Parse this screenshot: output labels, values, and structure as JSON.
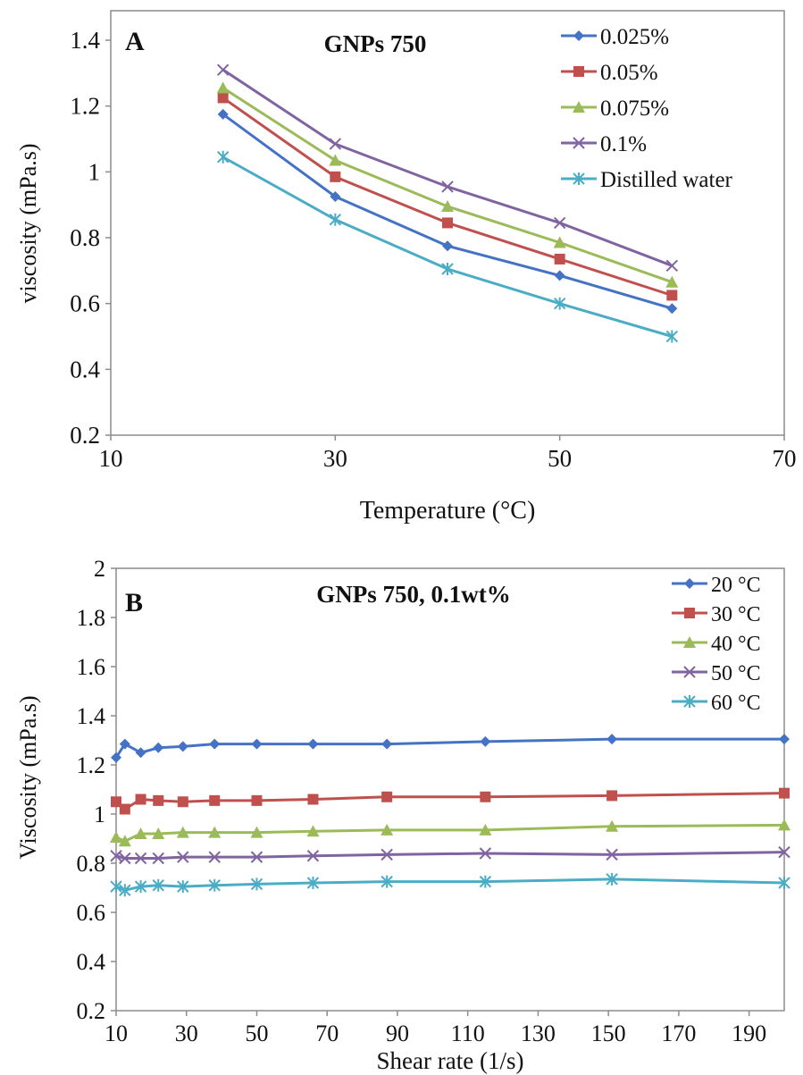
{
  "chart_data": [
    {
      "type": "line",
      "panel_label": "A",
      "title": "GNPs 750",
      "xlabel": "Temperature (°C)",
      "ylabel": "viscosity (mPa.s)",
      "xlim": [
        10,
        70
      ],
      "ylim": [
        0.2,
        1.4
      ],
      "xticks": [
        "10",
        "30",
        "50",
        "70"
      ],
      "yticks": [
        "0.2",
        "0.4",
        "0.6",
        "0.8",
        "1",
        "1.2",
        "1.4"
      ],
      "grid": false,
      "legend_position": "top-right",
      "x": [
        20,
        30,
        40,
        50,
        60
      ],
      "series": [
        {
          "name": "0.025%",
          "color": "#4472c4",
          "marker": "diamond",
          "values": [
            1.175,
            0.925,
            0.775,
            0.685,
            0.585
          ]
        },
        {
          "name": "0.05%",
          "color": "#c0504d",
          "marker": "square",
          "values": [
            1.225,
            0.985,
            0.845,
            0.735,
            0.625
          ]
        },
        {
          "name": "0.075%",
          "color": "#9bbb59",
          "marker": "triangle",
          "values": [
            1.255,
            1.035,
            0.895,
            0.785,
            0.665
          ]
        },
        {
          "name": "0.1%",
          "color": "#8064a2",
          "marker": "x",
          "values": [
            1.31,
            1.085,
            0.955,
            0.845,
            0.715
          ]
        },
        {
          "name": "Distilled water",
          "color": "#4bacc6",
          "marker": "star",
          "values": [
            1.045,
            0.855,
            0.705,
            0.6,
            0.5
          ]
        }
      ]
    },
    {
      "type": "line",
      "panel_label": "B",
      "title": "GNPs 750, 0.1wt%",
      "xlabel": "Shear rate (1/s)",
      "ylabel": "Viscosity (mPa.s)",
      "xlim": [
        10,
        200
      ],
      "ylim": [
        0.2,
        2
      ],
      "xticks": [
        "10",
        "30",
        "50",
        "70",
        "90",
        "110",
        "130",
        "150",
        "170",
        "190"
      ],
      "yticks": [
        "0.2",
        "0.4",
        "0.6",
        "0.8",
        "1",
        "1.2",
        "1.4",
        "1.6",
        "1.8",
        "2"
      ],
      "grid": false,
      "legend_position": "top-right",
      "x": [
        10,
        12.5,
        17,
        22,
        29,
        38,
        50,
        66,
        87,
        115,
        151,
        200
      ],
      "series": [
        {
          "name": "20 °C",
          "color": "#4472c4",
          "marker": "diamond",
          "values": [
            1.23,
            1.285,
            1.25,
            1.27,
            1.275,
            1.285,
            1.285,
            1.285,
            1.285,
            1.295,
            1.305,
            1.305
          ]
        },
        {
          "name": "30 °C",
          "color": "#c0504d",
          "marker": "square",
          "values": [
            1.05,
            1.02,
            1.06,
            1.055,
            1.05,
            1.055,
            1.055,
            1.06,
            1.07,
            1.07,
            1.075,
            1.085
          ]
        },
        {
          "name": "40 °C",
          "color": "#9bbb59",
          "marker": "triangle",
          "values": [
            0.905,
            0.89,
            0.92,
            0.92,
            0.925,
            0.925,
            0.925,
            0.93,
            0.935,
            0.935,
            0.95,
            0.955
          ]
        },
        {
          "name": "50 °C",
          "color": "#8064a2",
          "marker": "x",
          "values": [
            0.83,
            0.82,
            0.82,
            0.82,
            0.825,
            0.825,
            0.825,
            0.83,
            0.835,
            0.84,
            0.835,
            0.845
          ]
        },
        {
          "name": "60 °C",
          "color": "#4bacc6",
          "marker": "star",
          "values": [
            0.705,
            0.69,
            0.705,
            0.71,
            0.705,
            0.71,
            0.715,
            0.72,
            0.725,
            0.725,
            0.735,
            0.72
          ]
        }
      ]
    }
  ]
}
